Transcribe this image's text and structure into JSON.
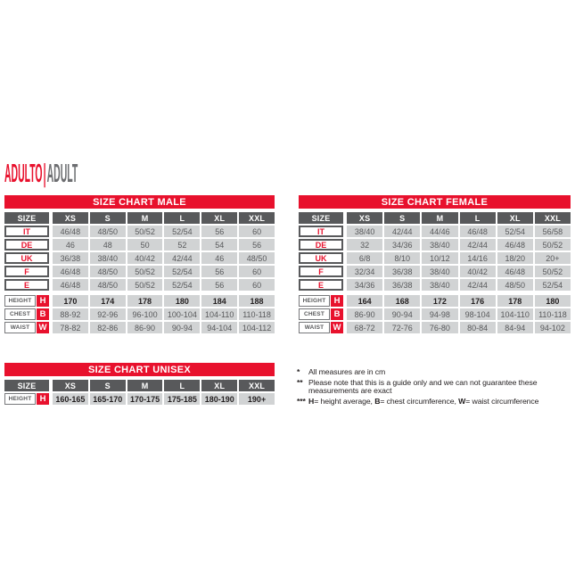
{
  "title": {
    "primary": "ADULTO",
    "separator": "|",
    "secondary": "ADULT"
  },
  "colors": {
    "accent_red": "#e8112d",
    "header_gray": "#58595b",
    "cell_gray": "#d1d3d4",
    "title_gray": "#6d6e71",
    "text_dark": "#231f20"
  },
  "tables": {
    "male": {
      "title": "SIZE CHART MALE",
      "columns": [
        "SIZE",
        "XS",
        "S",
        "M",
        "L",
        "XL",
        "XXL"
      ],
      "size_rows": [
        {
          "label": "IT",
          "values": [
            "46/48",
            "48/50",
            "50/52",
            "52/54",
            "56",
            "60"
          ]
        },
        {
          "label": "DE",
          "values": [
            "46",
            "48",
            "50",
            "52",
            "54",
            "56"
          ]
        },
        {
          "label": "UK",
          "values": [
            "36/38",
            "38/40",
            "40/42",
            "42/44",
            "46",
            "48/50"
          ]
        },
        {
          "label": "F",
          "values": [
            "46/48",
            "48/50",
            "50/52",
            "52/54",
            "56",
            "60"
          ]
        },
        {
          "label": "E",
          "values": [
            "46/48",
            "48/50",
            "50/52",
            "52/54",
            "56",
            "60"
          ]
        }
      ],
      "measure_rows": [
        {
          "label": "HEIGHT",
          "code": "H",
          "bold": true,
          "values": [
            "170",
            "174",
            "178",
            "180",
            "184",
            "188"
          ]
        },
        {
          "label": "CHEST",
          "code": "B",
          "bold": false,
          "values": [
            "88-92",
            "92-96",
            "96-100",
            "100-104",
            "104-110",
            "110-118"
          ]
        },
        {
          "label": "WAIST",
          "code": "W",
          "bold": false,
          "values": [
            "78-82",
            "82-86",
            "86-90",
            "90-94",
            "94-104",
            "104-112"
          ]
        }
      ]
    },
    "female": {
      "title": "SIZE CHART FEMALE",
      "columns": [
        "SIZE",
        "XS",
        "S",
        "M",
        "L",
        "XL",
        "XXL"
      ],
      "size_rows": [
        {
          "label": "IT",
          "values": [
            "38/40",
            "42/44",
            "44/46",
            "46/48",
            "52/54",
            "56/58"
          ]
        },
        {
          "label": "DE",
          "values": [
            "32",
            "34/36",
            "38/40",
            "42/44",
            "46/48",
            "50/52"
          ]
        },
        {
          "label": "UK",
          "values": [
            "6/8",
            "8/10",
            "10/12",
            "14/16",
            "18/20",
            "20+"
          ]
        },
        {
          "label": "F",
          "values": [
            "32/34",
            "36/38",
            "38/40",
            "40/42",
            "46/48",
            "50/52"
          ]
        },
        {
          "label": "E",
          "values": [
            "34/36",
            "36/38",
            "38/40",
            "42/44",
            "48/50",
            "52/54"
          ]
        }
      ],
      "measure_rows": [
        {
          "label": "HEIGHT",
          "code": "H",
          "bold": true,
          "values": [
            "164",
            "168",
            "172",
            "176",
            "178",
            "180"
          ]
        },
        {
          "label": "CHEST",
          "code": "B",
          "bold": false,
          "values": [
            "86-90",
            "90-94",
            "94-98",
            "98-104",
            "104-110",
            "110-118"
          ]
        },
        {
          "label": "WAIST",
          "code": "W",
          "bold": false,
          "values": [
            "68-72",
            "72-76",
            "76-80",
            "80-84",
            "84-94",
            "94-102"
          ]
        }
      ]
    },
    "unisex": {
      "title": "SIZE CHART UNISEX",
      "columns": [
        "SIZE",
        "XS",
        "S",
        "M",
        "L",
        "XL",
        "XXL"
      ],
      "size_rows": [],
      "measure_rows": [
        {
          "label": "HEIGHT",
          "code": "H",
          "bold": true,
          "values": [
            "160-165",
            "165-170",
            "170-175",
            "175-185",
            "180-190",
            "190+"
          ]
        }
      ]
    }
  },
  "footnotes": [
    {
      "marker": "*",
      "segments": [
        {
          "text": "All measures are in cm",
          "bold": false
        }
      ]
    },
    {
      "marker": "**",
      "segments": [
        {
          "text": "Please note that this is a guide only and we can not guarantee these measurements are exact",
          "bold": false
        }
      ]
    },
    {
      "marker": "***",
      "segments": [
        {
          "text": "H",
          "bold": true
        },
        {
          "text": "= height average, ",
          "bold": false
        },
        {
          "text": "B",
          "bold": true
        },
        {
          "text": "= chest circumference, ",
          "bold": false
        },
        {
          "text": "W",
          "bold": true
        },
        {
          "text": "= waist circumference",
          "bold": false
        }
      ]
    }
  ]
}
